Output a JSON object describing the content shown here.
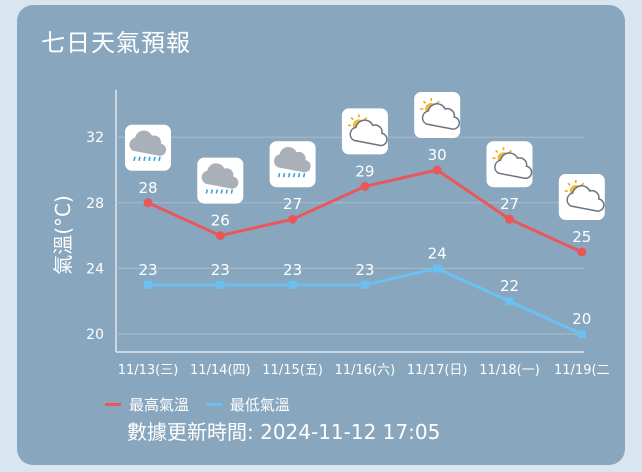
{
  "title": "七日天氣預報",
  "updated_text": "數據更新時間: 2024-11-12 17:05",
  "colors": {
    "high": "#e8585a",
    "low": "#6ac0f2",
    "card": "#88a7bf"
  },
  "chart_data": {
    "type": "line",
    "title": "",
    "xlabel": "",
    "ylabel": "氣溫(°C)",
    "ylim": [
      18,
      35
    ],
    "yticks": [
      20,
      24,
      28,
      32
    ],
    "grid": true,
    "legend_position": "bottom-left",
    "categories": [
      "11/13(三)",
      "11/14(四)",
      "11/15(五)",
      "11/16(六)",
      "11/17(日)",
      "11/18(一)",
      "11/19(二"
    ],
    "icons": [
      "rain-cloud-icon",
      "rain-cloud-icon",
      "rain-cloud-icon",
      "sun-cloud-icon",
      "sun-cloud-icon",
      "sun-cloud-icon",
      "sun-cloud-icon"
    ],
    "series": [
      {
        "name": "最高氣溫",
        "color": "#e8585a",
        "values": [
          28,
          26,
          27,
          29,
          30,
          27,
          25
        ]
      },
      {
        "name": "最低氣溫",
        "color": "#6ac0f2",
        "values": [
          23,
          23,
          23,
          23,
          24,
          22,
          20
        ]
      }
    ]
  }
}
